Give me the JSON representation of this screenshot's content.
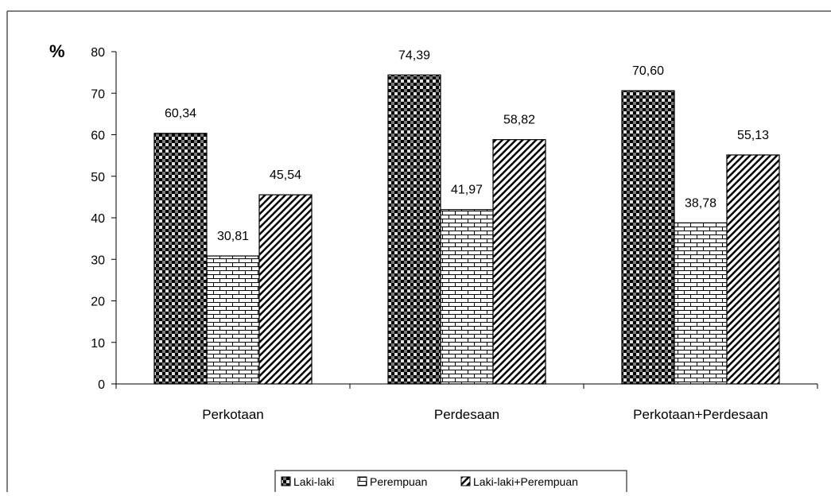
{
  "chart_data": {
    "type": "bar",
    "ylabel": "%",
    "ylim": [
      0,
      80
    ],
    "yticks": [
      0,
      10,
      20,
      30,
      40,
      50,
      60,
      70,
      80
    ],
    "categories": [
      "Perkotaan",
      "Perdesaan",
      "Perkotaan+Perdesaan"
    ],
    "series": [
      {
        "name": "Laki-laki",
        "values": [
          60.34,
          74.39,
          70.6
        ],
        "labels": [
          "60,34",
          "74,39",
          "70,60"
        ]
      },
      {
        "name": "Perempuan",
        "values": [
          30.81,
          41.97,
          38.78
        ],
        "labels": [
          "30,81",
          "41,97",
          "38,78"
        ]
      },
      {
        "name": "Laki-laki+Perempuan",
        "values": [
          45.54,
          58.82,
          55.13
        ],
        "labels": [
          "45,54",
          "58,82",
          "55,13"
        ]
      }
    ],
    "grid": false,
    "legend_position": "bottom"
  }
}
